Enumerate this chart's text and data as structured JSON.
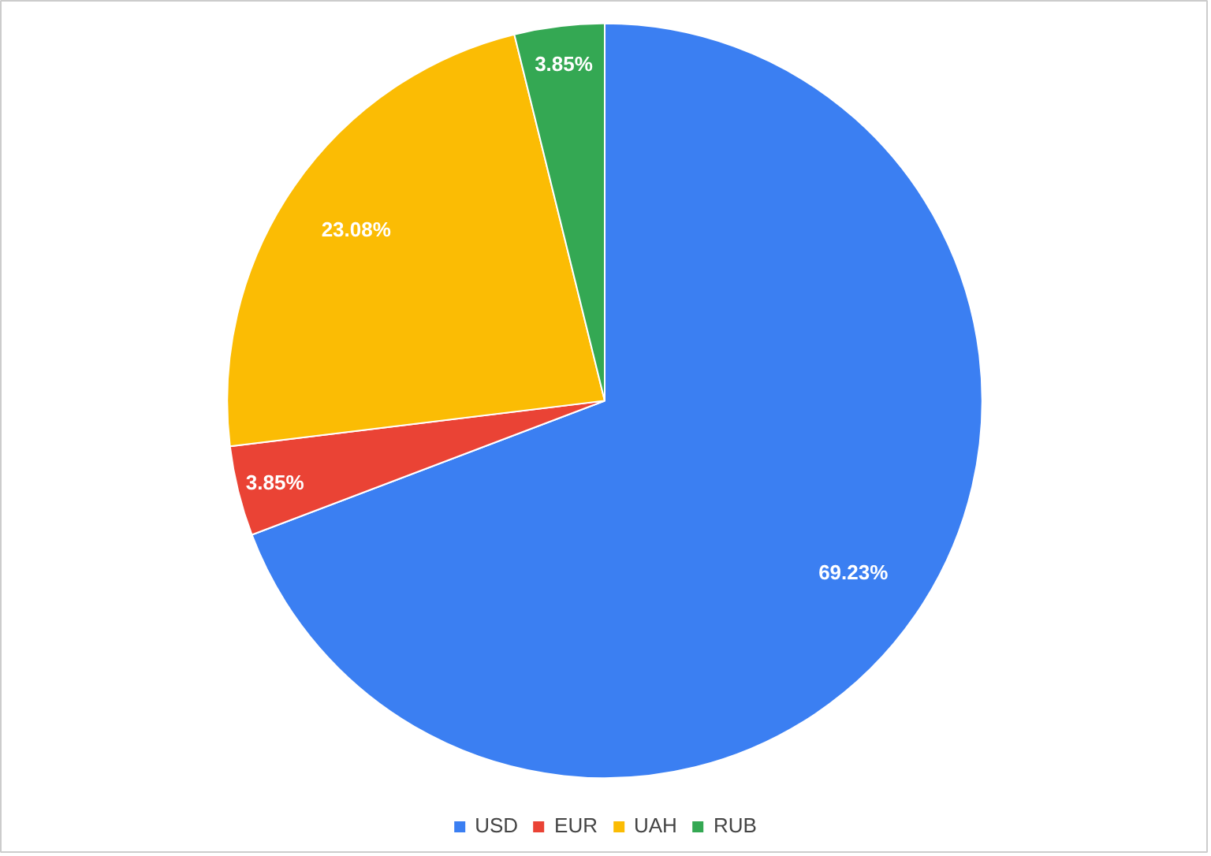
{
  "chart_data": {
    "type": "pie",
    "categories": [
      "USD",
      "EUR",
      "UAH",
      "RUB"
    ],
    "values": [
      69.23,
      3.85,
      23.08,
      3.85
    ],
    "colors": [
      "#3b7ff2",
      "#ea4335",
      "#fbbc04",
      "#34a853"
    ],
    "value_labels": [
      "69.23%",
      "3.85%",
      "23.08%",
      "3.85%"
    ],
    "legend": "bottom"
  }
}
